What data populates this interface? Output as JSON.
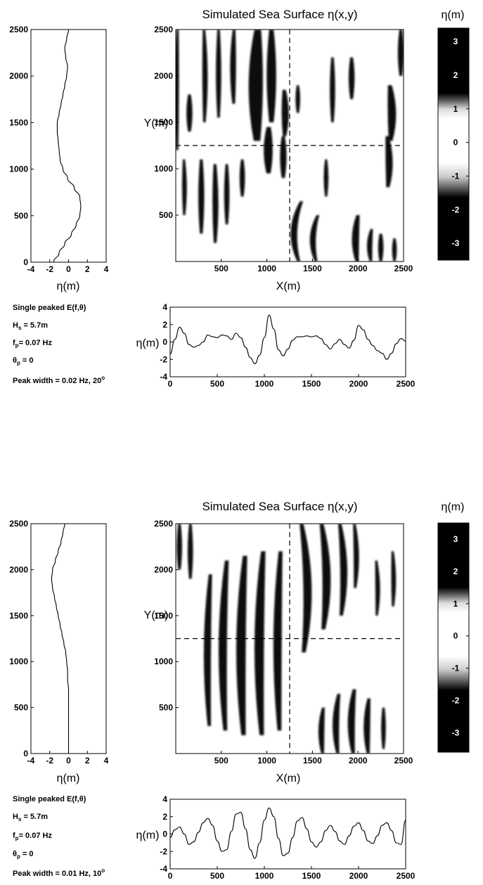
{
  "chart_data": [
    {
      "panel": "top",
      "title": "Simulated Sea Surface η(x,y)",
      "colorbar": {
        "label": "η(m)",
        "ticks": [
          "3",
          "2",
          "1",
          "0",
          "-1",
          "-2",
          "-3"
        ],
        "range": [
          -3.5,
          3.4
        ],
        "colormap": "dark-white-dark"
      },
      "map": {
        "type": "heatmap",
        "xlabel": "X(m)",
        "ylabel": "Y(m)",
        "xlim": [
          0,
          2500
        ],
        "ylim": [
          0,
          2500
        ],
        "xticks": [
          "500",
          "1000",
          "1500",
          "2000",
          "2500"
        ],
        "yticks": [
          "500",
          "1000",
          "1500",
          "2000",
          "2500"
        ],
        "crosshair": {
          "x": 1250,
          "y": 1250
        },
        "dark_bands": [
          {
            "x": 20,
            "y0": 1200,
            "y1": 2500,
            "w": 40,
            "curve": -20
          },
          {
            "x": 150,
            "y0": 1400,
            "y1": 1800,
            "w": 50,
            "curve": 0
          },
          {
            "x": 310,
            "y0": 1500,
            "y1": 2500,
            "w": 45,
            "curve": 20
          },
          {
            "x": 470,
            "y0": 1550,
            "y1": 2500,
            "w": 45,
            "curve": 0
          },
          {
            "x": 640,
            "y0": 1700,
            "y1": 2500,
            "w": 50,
            "curve": -20
          },
          {
            "x": 900,
            "y0": 1300,
            "y1": 2500,
            "w": 120,
            "curve": -40
          },
          {
            "x": 1050,
            "y0": 1500,
            "y1": 2500,
            "w": 80,
            "curve": 0
          },
          {
            "x": 1190,
            "y0": 1350,
            "y1": 1850,
            "w": 60,
            "curve": 20
          },
          {
            "x": 1340,
            "y0": 1600,
            "y1": 1900,
            "w": 40,
            "curve": 0
          },
          {
            "x": 1720,
            "y0": 1500,
            "y1": 2200,
            "w": 45,
            "curve": 0
          },
          {
            "x": 1930,
            "y0": 1750,
            "y1": 2200,
            "w": 50,
            "curve": 0
          },
          {
            "x": 2350,
            "y0": 1300,
            "y1": 1900,
            "w": 70,
            "curve": 40
          },
          {
            "x": 2470,
            "y0": 2000,
            "y1": 2500,
            "w": 50,
            "curve": 0
          },
          {
            "x": 90,
            "y0": 500,
            "y1": 1100,
            "w": 40,
            "curve": 10
          },
          {
            "x": 280,
            "y0": 300,
            "y1": 1100,
            "w": 50,
            "curve": 0
          },
          {
            "x": 430,
            "y0": 200,
            "y1": 1050,
            "w": 50,
            "curve": 10
          },
          {
            "x": 560,
            "y0": 400,
            "y1": 1050,
            "w": 45,
            "curve": 0
          },
          {
            "x": 730,
            "y0": 700,
            "y1": 1100,
            "w": 45,
            "curve": 0
          },
          {
            "x": 1020,
            "y0": 950,
            "y1": 1450,
            "w": 75,
            "curve": -10
          },
          {
            "x": 1180,
            "y0": 900,
            "y1": 1350,
            "w": 55,
            "curve": 0
          },
          {
            "x": 1380,
            "y0": 0,
            "y1": 650,
            "w": 55,
            "curve": -150
          },
          {
            "x": 1560,
            "y0": 0,
            "y1": 500,
            "w": 50,
            "curve": -100
          },
          {
            "x": 1650,
            "y0": 700,
            "y1": 1100,
            "w": 40,
            "curve": 0
          },
          {
            "x": 2000,
            "y0": 0,
            "y1": 500,
            "w": 60,
            "curve": -50
          },
          {
            "x": 2320,
            "y0": 800,
            "y1": 1350,
            "w": 60,
            "curve": 40
          },
          {
            "x": 2150,
            "y0": 0,
            "y1": 350,
            "w": 45,
            "curve": -40
          },
          {
            "x": 2250,
            "y0": 0,
            "y1": 300,
            "w": 45,
            "curve": 0
          },
          {
            "x": 2400,
            "y0": 0,
            "y1": 250,
            "w": 40,
            "curve": 0
          }
        ]
      },
      "profile_y": {
        "type": "line",
        "xlabel": "η(m)",
        "xlim": [
          -4,
          4
        ],
        "ylim": [
          0,
          2500
        ],
        "xticks": [
          "-4",
          "-2",
          "0",
          "2",
          "4"
        ],
        "yticks": [
          "0",
          "500",
          "1000",
          "1500",
          "2000",
          "2500"
        ],
        "y": [
          0,
          100,
          200,
          300,
          400,
          500,
          600,
          700,
          800,
          900,
          1000,
          1100,
          1200,
          1300,
          1400,
          1500,
          1600,
          1700,
          1800,
          1900,
          2000,
          2100,
          2200,
          2300,
          2400,
          2500
        ],
        "eta": [
          -1.6,
          -1.0,
          -0.4,
          0.3,
          0.8,
          1.2,
          1.3,
          1.2,
          0.6,
          -0.1,
          -0.6,
          -0.9,
          -1.0,
          -1.1,
          -1.2,
          -1.2,
          -1.0,
          -0.8,
          -0.6,
          -0.4,
          -0.2,
          -0.1,
          -0.3,
          -0.4,
          -0.2,
          0.0
        ]
      },
      "profile_x": {
        "type": "line",
        "ylabel": "η(m)",
        "xlim": [
          0,
          2500
        ],
        "ylim": [
          -4,
          4
        ],
        "xticks": [
          "0",
          "500",
          "1000",
          "1500",
          "2000",
          "2500"
        ],
        "yticks": [
          "4",
          "2",
          "0",
          "-2",
          "-4"
        ],
        "x": [
          0,
          50,
          100,
          150,
          200,
          250,
          300,
          350,
          400,
          450,
          500,
          550,
          600,
          650,
          700,
          750,
          800,
          850,
          900,
          950,
          1000,
          1050,
          1100,
          1150,
          1200,
          1250,
          1300,
          1350,
          1400,
          1450,
          1500,
          1550,
          1600,
          1650,
          1700,
          1750,
          1800,
          1850,
          1900,
          1950,
          2000,
          2050,
          2100,
          2150,
          2200,
          2250,
          2300,
          2350,
          2400,
          2450,
          2500
        ],
        "eta": [
          -1.4,
          0.3,
          1.7,
          1.0,
          -0.3,
          -0.6,
          -0.4,
          0.0,
          0.8,
          0.6,
          0.5,
          0.8,
          0.7,
          0.3,
          1.0,
          0.5,
          -0.6,
          -1.8,
          -2.5,
          -1.5,
          0.5,
          3.1,
          1.5,
          -0.9,
          -1.6,
          -0.8,
          0.2,
          0.6,
          0.6,
          0.7,
          0.6,
          0.7,
          0.4,
          -0.3,
          -0.8,
          -0.2,
          0.3,
          -0.3,
          -0.7,
          0.2,
          1.9,
          1.4,
          0.3,
          -0.4,
          -1.0,
          -1.3,
          -2.0,
          -1.3,
          -0.2,
          0.4,
          0.1
        ]
      },
      "params": {
        "line1": "Single peaked E(f,θ)",
        "hs_sym": "H",
        "hs_sub": "s",
        "hs_val": " = 5.7m",
        "fp_sym": "f",
        "fp_sub": "p",
        "fp_val": "= 0.07 Hz",
        "th_sym": "θ",
        "th_sub": "p",
        "th_val": " = 0",
        "width_text": "Peak width = 0.02 Hz, 20",
        "width_sup": "o"
      }
    },
    {
      "panel": "bottom",
      "title": "Simulated Sea Surface η(x,y)",
      "colorbar": {
        "label": "η(m)",
        "ticks": [
          "3",
          "2",
          "1",
          "0",
          "-1",
          "-2",
          "-3"
        ],
        "range": [
          -3.6,
          3.5
        ],
        "colormap": "dark-white-dark"
      },
      "map": {
        "type": "heatmap",
        "xlabel": "X(m)",
        "ylabel": "Y(m)",
        "xlim": [
          0,
          2500
        ],
        "ylim": [
          0,
          2500
        ],
        "xticks": [
          "500",
          "1000",
          "1500",
          "2000",
          "2500"
        ],
        "yticks": [
          "500",
          "1000",
          "1500",
          "2000",
          "2500"
        ],
        "crosshair": {
          "x": 1250,
          "y": 1250
        },
        "dark_bands": [
          {
            "x": 40,
            "y0": 2000,
            "y1": 2500,
            "w": 45,
            "curve": 0
          },
          {
            "x": 160,
            "y0": 1900,
            "y1": 2500,
            "w": 45,
            "curve": 0
          },
          {
            "x": 380,
            "y0": 300,
            "y1": 1950,
            "w": 60,
            "curve": -60
          },
          {
            "x": 560,
            "y0": 250,
            "y1": 2100,
            "w": 70,
            "curve": -80
          },
          {
            "x": 760,
            "y0": 200,
            "y1": 2150,
            "w": 80,
            "curve": -80
          },
          {
            "x": 960,
            "y0": 200,
            "y1": 2200,
            "w": 80,
            "curve": -80
          },
          {
            "x": 1150,
            "y0": 250,
            "y1": 2200,
            "w": 70,
            "curve": -60
          },
          {
            "x": 1380,
            "y0": 1100,
            "y1": 2500,
            "w": 70,
            "curve": 120
          },
          {
            "x": 1600,
            "y0": 1350,
            "y1": 2500,
            "w": 70,
            "curve": 100
          },
          {
            "x": 1800,
            "y0": 1500,
            "y1": 2500,
            "w": 60,
            "curve": 80
          },
          {
            "x": 1960,
            "y0": 1800,
            "y1": 2500,
            "w": 45,
            "curve": 40
          },
          {
            "x": 2200,
            "y0": 1500,
            "y1": 2100,
            "w": 40,
            "curve": 30
          },
          {
            "x": 2380,
            "y0": 1600,
            "y1": 2200,
            "w": 40,
            "curve": 20
          },
          {
            "x": 1620,
            "y0": 0,
            "y1": 500,
            "w": 50,
            "curve": -40
          },
          {
            "x": 1790,
            "y0": 0,
            "y1": 650,
            "w": 55,
            "curve": -60
          },
          {
            "x": 1960,
            "y0": 0,
            "y1": 700,
            "w": 60,
            "curve": -60
          },
          {
            "x": 2120,
            "y0": 0,
            "y1": 600,
            "w": 55,
            "curve": -40
          },
          {
            "x": 2280,
            "y0": 50,
            "y1": 500,
            "w": 40,
            "curve": 0
          }
        ]
      },
      "profile_y": {
        "type": "line",
        "xlabel": "η(m)",
        "xlim": [
          -4,
          4
        ],
        "ylim": [
          0,
          2500
        ],
        "xticks": [
          "-4",
          "-2",
          "0",
          "2",
          "4"
        ],
        "yticks": [
          "0",
          "500",
          "1000",
          "1500",
          "2000",
          "2500"
        ],
        "y": [
          0,
          100,
          200,
          300,
          400,
          500,
          600,
          700,
          800,
          900,
          1000,
          1100,
          1200,
          1300,
          1400,
          1500,
          1600,
          1700,
          1800,
          1900,
          2000,
          2100,
          2200,
          2300,
          2400,
          2500
        ],
        "eta": [
          0.0,
          0.0,
          0.0,
          0.0,
          0.0,
          0.0,
          0.0,
          0.0,
          -0.1,
          -0.1,
          -0.2,
          -0.3,
          -0.5,
          -0.7,
          -0.9,
          -1.1,
          -1.3,
          -1.5,
          -1.7,
          -1.8,
          -1.7,
          -1.4,
          -1.1,
          -0.8,
          -0.6,
          -0.4
        ]
      },
      "profile_x": {
        "type": "line",
        "ylabel": "η(m)",
        "xlim": [
          0,
          2500
        ],
        "ylim": [
          -4,
          4
        ],
        "xticks": [
          "0",
          "500",
          "1000",
          "1500",
          "2000",
          "2500"
        ],
        "yticks": [
          "4",
          "2",
          "0",
          "-2",
          "-4"
        ],
        "x": [
          0,
          50,
          100,
          150,
          200,
          250,
          300,
          350,
          400,
          450,
          500,
          550,
          600,
          650,
          700,
          750,
          800,
          850,
          900,
          950,
          1000,
          1050,
          1100,
          1150,
          1200,
          1250,
          1300,
          1350,
          1400,
          1450,
          1500,
          1550,
          1600,
          1650,
          1700,
          1750,
          1800,
          1850,
          1900,
          1950,
          2000,
          2050,
          2100,
          2150,
          2200,
          2250,
          2300,
          2350,
          2400,
          2450,
          2500
        ],
        "eta": [
          -0.4,
          0.5,
          0.8,
          0.0,
          -1.2,
          -0.9,
          0.2,
          1.3,
          1.8,
          1.0,
          -0.8,
          -2.0,
          -1.8,
          0.3,
          2.3,
          2.5,
          0.6,
          -1.8,
          -2.8,
          -1.0,
          1.6,
          3.0,
          2.0,
          -0.5,
          -2.5,
          -2.2,
          -0.4,
          1.5,
          1.9,
          0.6,
          -0.9,
          -1.5,
          -0.9,
          0.4,
          1.0,
          0.3,
          -0.8,
          -1.2,
          -0.2,
          0.9,
          1.3,
          0.4,
          -0.8,
          -1.1,
          -0.2,
          1.0,
          1.3,
          0.4,
          -1.0,
          -1.2,
          1.6
        ]
      },
      "params": {
        "line1": "Single peaked E(f,θ)",
        "hs_sym": "H",
        "hs_sub": "s",
        "hs_val": " = 5.7m",
        "fp_sym": "f",
        "fp_sub": "p",
        "fp_val": "= 0.07 Hz",
        "th_sym": "θ",
        "th_sub": "p",
        "th_val": " = 0",
        "width_text": "Peak width = 0.01 Hz, 10",
        "width_sup": "o"
      }
    }
  ]
}
